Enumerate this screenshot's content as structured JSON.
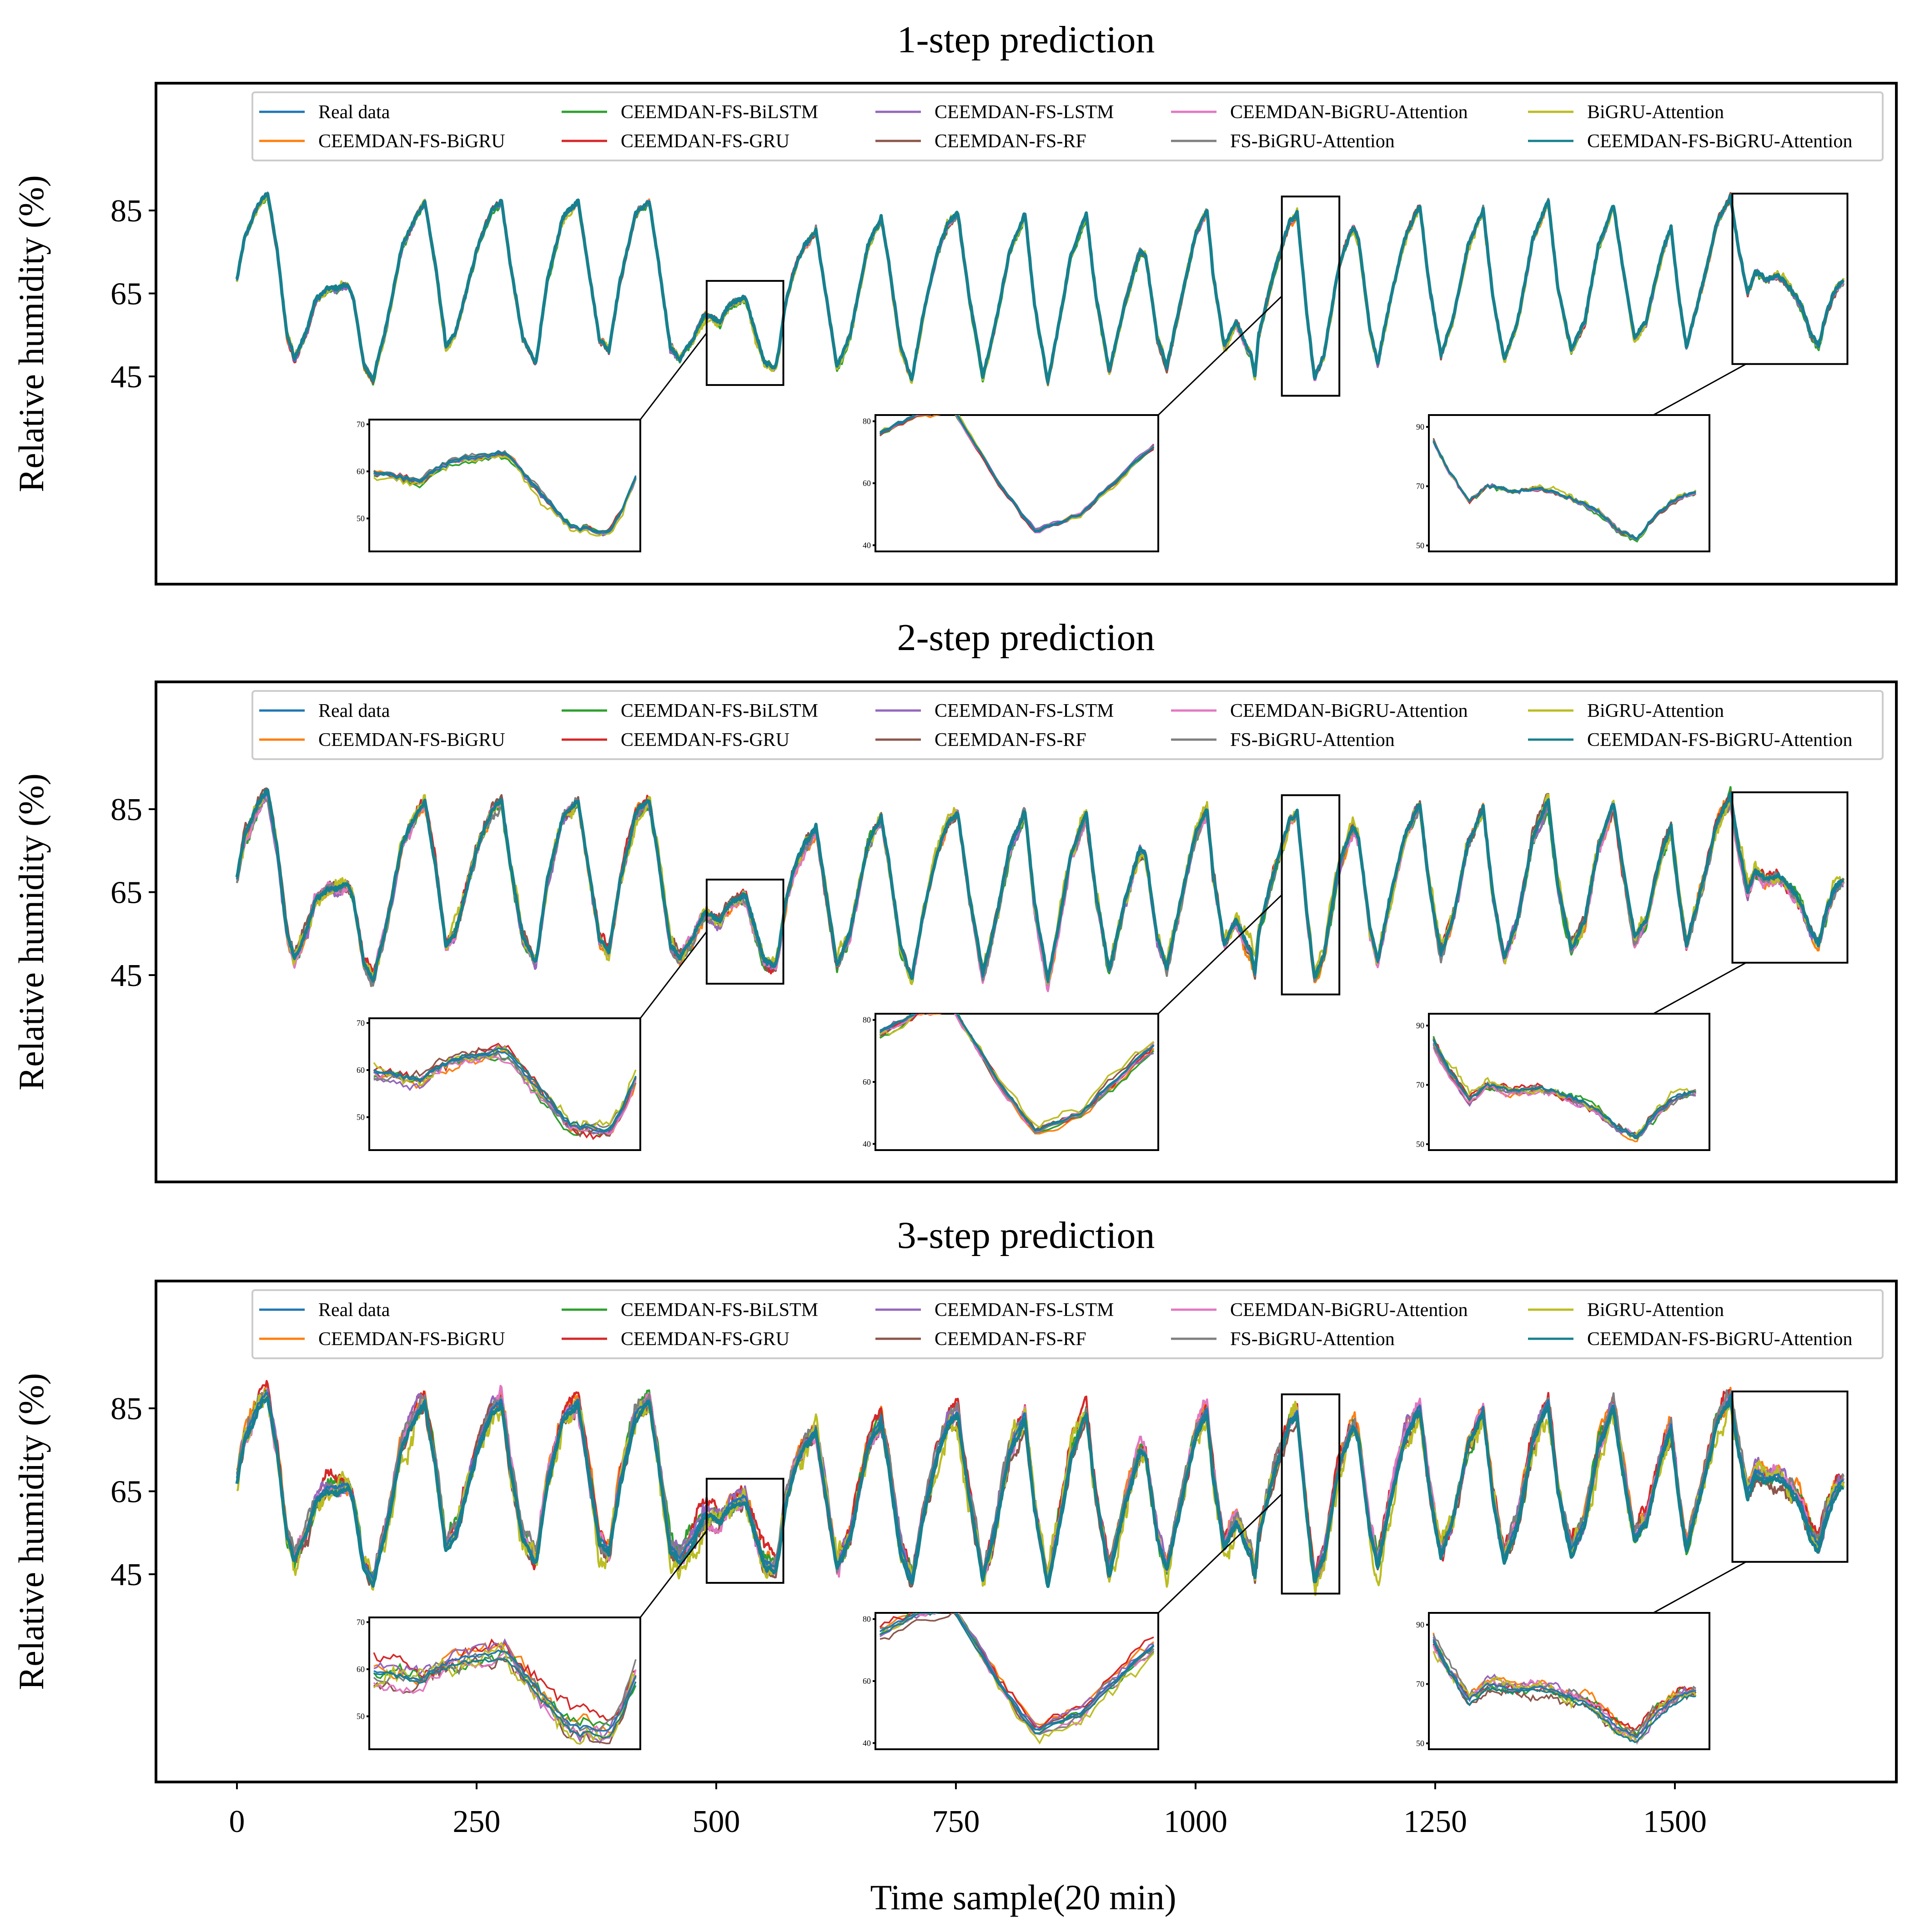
{
  "chart_data": {
    "type": "line",
    "ylabel": "Relative humidity (%)",
    "xlabel": "Time sample(20 min)",
    "xlim": [
      -85,
      1750
    ],
    "ylim": [
      -5,
      115
    ],
    "xticks": [
      0,
      250,
      500,
      750,
      1000,
      1250,
      1500
    ],
    "yticks": [
      45,
      65,
      85
    ],
    "legend_position": "top",
    "colors": {
      "Real data": "#1f77b4",
      "CEEMDAN-FS-BiGRU": "#ff7f0e",
      "CEEMDAN-FS-BiLSTM": "#2ca02c",
      "CEEMDAN-FS-GRU": "#d62728",
      "CEEMDAN-FS-LSTM": "#9467bd",
      "CEEMDAN-FS-RF": "#8c564b",
      "CEEMDAN-BiGRU-Attention": "#e377c2",
      "FS-BiGRU-Attention": "#7f7f7f",
      "BiGRU-Attention": "#bcbd22",
      "CEEMDAN-FS-BiGRU-Attention": "#17808e"
    },
    "legend_order": [
      "Real data",
      "CEEMDAN-FS-BiGRU",
      "CEEMDAN-FS-BiLSTM",
      "CEEMDAN-FS-GRU",
      "CEEMDAN-FS-LSTM",
      "CEEMDAN-FS-RF",
      "CEEMDAN-BiGRU-Attention",
      "FS-BiGRU-Attention",
      "BiGRU-Attention",
      "CEEMDAN-FS-BiGRU-Attention"
    ],
    "real_data_keypoints": [
      [
        0,
        68
      ],
      [
        8,
        78
      ],
      [
        22,
        86
      ],
      [
        32,
        89
      ],
      [
        42,
        75
      ],
      [
        52,
        55
      ],
      [
        60,
        49
      ],
      [
        72,
        55
      ],
      [
        82,
        63
      ],
      [
        95,
        66
      ],
      [
        105,
        66
      ],
      [
        115,
        67
      ],
      [
        122,
        63
      ],
      [
        132,
        48
      ],
      [
        142,
        44
      ],
      [
        155,
        56
      ],
      [
        172,
        76
      ],
      [
        188,
        84
      ],
      [
        196,
        87
      ],
      [
        208,
        70
      ],
      [
        218,
        52
      ],
      [
        228,
        55
      ],
      [
        250,
        75
      ],
      [
        266,
        85
      ],
      [
        276,
        87
      ],
      [
        285,
        72
      ],
      [
        298,
        54
      ],
      [
        312,
        48
      ],
      [
        324,
        68
      ],
      [
        340,
        83
      ],
      [
        356,
        87
      ],
      [
        366,
        72
      ],
      [
        378,
        54
      ],
      [
        388,
        51
      ],
      [
        400,
        68
      ],
      [
        416,
        84
      ],
      [
        430,
        87
      ],
      [
        440,
        72
      ],
      [
        452,
        52
      ],
      [
        462,
        49
      ],
      [
        476,
        54
      ],
      [
        488,
        60
      ],
      [
        504,
        58
      ],
      [
        514,
        62
      ],
      [
        530,
        64
      ],
      [
        550,
        48
      ],
      [
        562,
        47
      ],
      [
        566,
        52
      ],
      [
        572,
        62
      ],
      [
        582,
        71
      ],
      [
        592,
        76
      ],
      [
        604,
        80
      ],
      [
        616,
        62
      ],
      [
        626,
        47
      ],
      [
        640,
        55
      ],
      [
        658,
        76
      ],
      [
        672,
        83
      ],
      [
        680,
        72
      ],
      [
        692,
        52
      ],
      [
        704,
        44
      ],
      [
        716,
        60
      ],
      [
        730,
        74
      ],
      [
        742,
        82
      ],
      [
        752,
        84
      ],
      [
        764,
        64
      ],
      [
        778,
        45
      ],
      [
        790,
        56
      ],
      [
        806,
        75
      ],
      [
        822,
        84
      ],
      [
        832,
        62
      ],
      [
        846,
        43
      ],
      [
        858,
        58
      ],
      [
        870,
        74
      ],
      [
        886,
        84
      ],
      [
        896,
        64
      ],
      [
        910,
        46
      ],
      [
        926,
        62
      ],
      [
        942,
        75
      ],
      [
        948,
        74
      ],
      [
        960,
        54
      ],
      [
        970,
        47
      ],
      [
        984,
        62
      ],
      [
        1000,
        79
      ],
      [
        1012,
        85
      ],
      [
        1018,
        70
      ],
      [
        1030,
        52
      ],
      [
        1042,
        58
      ],
      [
        1058,
        50
      ],
      [
        1062,
        45
      ],
      [
        1066,
        55
      ],
      [
        1082,
        70
      ],
      [
        1098,
        82
      ],
      [
        1106,
        84
      ],
      [
        1116,
        60
      ],
      [
        1124,
        44
      ],
      [
        1134,
        50
      ],
      [
        1150,
        72
      ],
      [
        1164,
        81
      ],
      [
        1170,
        78
      ],
      [
        1182,
        56
      ],
      [
        1190,
        48
      ],
      [
        1202,
        62
      ],
      [
        1218,
        78
      ],
      [
        1234,
        86
      ],
      [
        1244,
        66
      ],
      [
        1256,
        50
      ],
      [
        1268,
        58
      ],
      [
        1284,
        76
      ],
      [
        1300,
        85
      ],
      [
        1310,
        64
      ],
      [
        1322,
        49
      ],
      [
        1336,
        58
      ],
      [
        1352,
        78
      ],
      [
        1368,
        87
      ],
      [
        1378,
        66
      ],
      [
        1392,
        51
      ],
      [
        1406,
        58
      ],
      [
        1420,
        76
      ],
      [
        1436,
        86
      ],
      [
        1446,
        70
      ],
      [
        1458,
        54
      ],
      [
        1470,
        58
      ],
      [
        1486,
        74
      ],
      [
        1496,
        81
      ],
      [
        1504,
        64
      ],
      [
        1512,
        52
      ],
      [
        1528,
        66
      ],
      [
        1544,
        82
      ],
      [
        1558,
        88
      ],
      [
        1566,
        76
      ],
      [
        1576,
        65
      ],
      [
        1584,
        70
      ],
      [
        1596,
        68
      ],
      [
        1608,
        69
      ],
      [
        1620,
        66
      ],
      [
        1632,
        62
      ],
      [
        1642,
        55
      ],
      [
        1650,
        52
      ],
      [
        1658,
        60
      ],
      [
        1668,
        66
      ],
      [
        1676,
        68
      ]
    ],
    "panels": [
      {
        "title": "1-step prediction",
        "noise": 0.9,
        "insets": [
          {
            "yticks": [
              "70",
              "60",
              "50"
            ],
            "yrange": [
              43,
              71
            ]
          },
          {
            "yticks": [
              "80",
              "60",
              "40"
            ],
            "yrange": [
              38,
              82
            ]
          },
          {
            "yticks": [
              "90",
              "70",
              "50"
            ],
            "yrange": [
              48,
              94
            ]
          }
        ]
      },
      {
        "title": "2-step prediction",
        "noise": 2.0,
        "insets": [
          {
            "yticks": [
              "70",
              "60",
              "50"
            ],
            "yrange": [
              43,
              71
            ]
          },
          {
            "yticks": [
              "80",
              "60",
              "40"
            ],
            "yrange": [
              38,
              82
            ]
          },
          {
            "yticks": [
              "90",
              "70",
              "50"
            ],
            "yrange": [
              48,
              94
            ]
          }
        ]
      },
      {
        "title": "3-step prediction",
        "noise": 3.2,
        "insets": [
          {
            "yticks": [
              "70",
              "60",
              "50"
            ],
            "yrange": [
              43,
              71
            ]
          },
          {
            "yticks": [
              "80",
              "60",
              "40"
            ],
            "yrange": [
              38,
              82
            ]
          },
          {
            "yticks": [
              "90",
              "70",
              "50"
            ],
            "yrange": [
              48,
              94
            ]
          }
        ]
      }
    ],
    "zoom_windows": [
      [
        490,
        570
      ],
      [
        1090,
        1150
      ],
      [
        1560,
        1680
      ]
    ]
  }
}
